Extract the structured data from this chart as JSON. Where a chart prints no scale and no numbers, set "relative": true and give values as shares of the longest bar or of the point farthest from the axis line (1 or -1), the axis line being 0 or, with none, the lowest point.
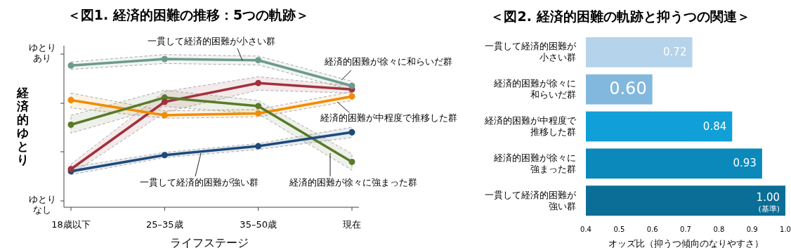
{
  "chart_data": [
    {
      "type": "line",
      "title": "＜図1. 経済的困難の推移：5つの軌跡＞",
      "xlabel": "ライフステージ",
      "ylabel": "経済的ゆとり",
      "relative": true,
      "marker": "circle",
      "categories": [
        "18歳以下",
        "25–35歳",
        "35–50歳",
        "現在"
      ],
      "annotations": [
        "ゆとりあり",
        "ゆとりなし"
      ],
      "series": [
        {
          "name": "一貫して経済的困難が小さい群",
          "color": "#6e9a8a",
          "values": [
            0.956,
            1.0,
            0.992,
            0.819
          ],
          "lower": [
            0.93,
            0.97,
            0.96,
            0.79
          ],
          "upper": [
            0.98,
            1.03,
            1.02,
            0.85
          ]
        },
        {
          "name": "経済的困難が徐々に和らいだ群",
          "color": "#a0323c",
          "values": [
            0.257,
            0.711,
            0.838,
            0.795
          ],
          "lower": [
            0.22,
            0.64,
            0.79,
            0.77
          ],
          "upper": [
            0.29,
            0.78,
            0.88,
            0.82
          ]
        },
        {
          "name": "経済的困難が中程度で推移した群",
          "color": "#f08c00",
          "values": [
            0.723,
            0.621,
            0.633,
            0.748
          ],
          "lower": [
            0.67,
            0.6,
            0.61,
            0.72
          ],
          "upper": [
            0.77,
            0.65,
            0.66,
            0.78
          ]
        },
        {
          "name": "経済的困難が徐々に強まった群",
          "color": "#5a7a2a",
          "values": [
            0.557,
            0.74,
            0.683,
            0.306
          ],
          "lower": [
            0.5,
            0.68,
            0.63,
            0.25
          ],
          "upper": [
            0.62,
            0.79,
            0.72,
            0.36
          ]
        },
        {
          "name": "一貫して経済的困難が強い群",
          "color": "#1e4a7a",
          "values": [
            0.243,
            0.352,
            0.412,
            0.506
          ],
          "lower": [
            0.22,
            0.335,
            0.39,
            0.47
          ],
          "upper": [
            0.27,
            0.37,
            0.43,
            0.54
          ]
        }
      ]
    },
    {
      "type": "bar",
      "orientation": "horizontal",
      "title": "＜図2. 経済的困難の軌跡と抑うつの関連＞",
      "xlabel": "オッズ比（抑うつ傾向のなりやすさ）",
      "categories": [
        "一貫して経済的困難が小さい群",
        "経済的困難が徐々に和らいだ群",
        "経済的困難が中程度で推移した群",
        "経済的困難が徐々に強まった群",
        "一貫して経済的困難が強い群"
      ],
      "values": [
        0.72,
        0.6,
        0.84,
        0.93,
        1.0
      ],
      "value_labels": [
        "0.72",
        "0.60",
        "0.84",
        "0.93",
        "1.00"
      ],
      "colors": [
        "#b5d3ea",
        "#82b8de",
        "#109fd6",
        "#0b89bb",
        "#0a6e96"
      ],
      "xlim": [
        0.4,
        1.0
      ],
      "xticks": [
        0.4,
        0.5,
        0.6,
        0.7,
        0.8,
        0.9,
        {
          "value": 1,
          "label": "1.0"
        }
      ],
      "annotations": [
        {
          "text": "(基準)",
          "x": 1,
          "y": "一貫して経済的困難が強い群"
        }
      ]
    }
  ]
}
